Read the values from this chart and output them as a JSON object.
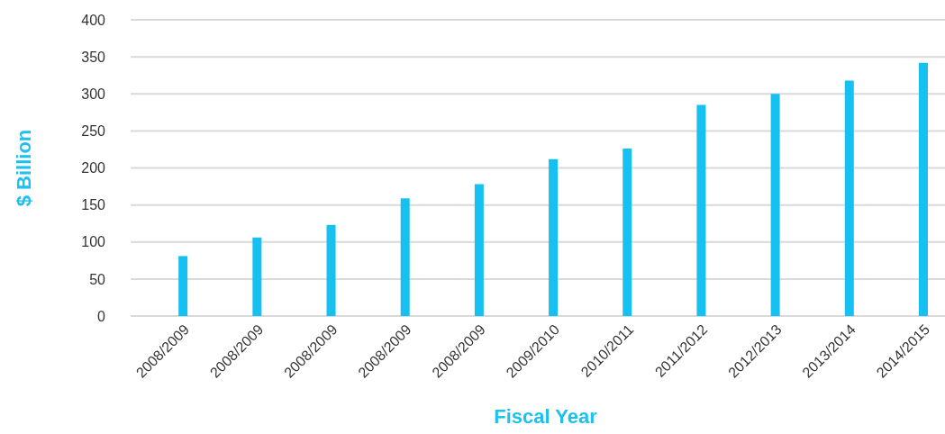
{
  "chart_data": {
    "type": "bar",
    "xlabel": "Fiscal Year",
    "ylabel": "$ Billion",
    "categories": [
      "2008/2009",
      "2008/2009",
      "2008/2009",
      "2008/2009",
      "2008/2009",
      "2009/2010",
      "2010/2011",
      "2011/2012",
      "2012/2013",
      "2013/2014",
      "2014/2015"
    ],
    "values": [
      81,
      106,
      123,
      159,
      178,
      212,
      226,
      285,
      300,
      318,
      342
    ],
    "color": "#16c0f0",
    "ylim": [
      0,
      400
    ],
    "yticks": [
      0,
      50,
      100,
      150,
      200,
      250,
      300,
      350,
      400
    ],
    "grid": "y",
    "legend": false
  }
}
